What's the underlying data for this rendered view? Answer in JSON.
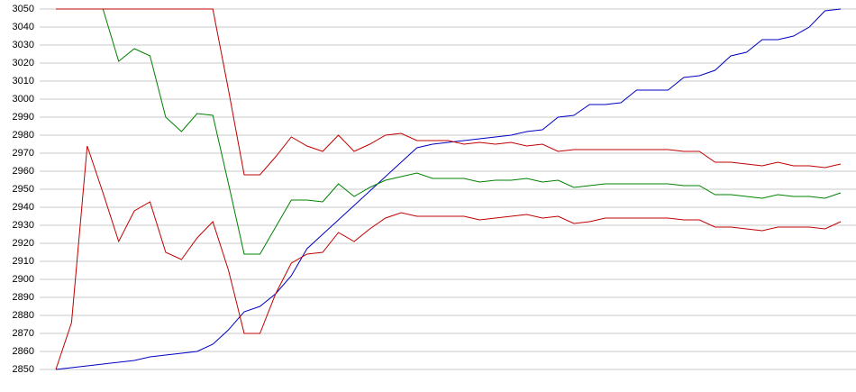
{
  "chart_data": {
    "type": "line",
    "categories": [
      null,
      null,
      null,
      null,
      null,
      null,
      null,
      null,
      null,
      null,
      null,
      null,
      null,
      null,
      null,
      null,
      null,
      null,
      null,
      null,
      null,
      null,
      null,
      null,
      null,
      null,
      null,
      null,
      null,
      null,
      null,
      null,
      null,
      null,
      null,
      null,
      null,
      null,
      null,
      null,
      null,
      null,
      null,
      null,
      null,
      null,
      null,
      null,
      null,
      null,
      null
    ],
    "series": [
      {
        "color": "#0000c0",
        "values": [
          2850,
          2851,
          2852,
          2853,
          2854,
          2855,
          2857,
          2858,
          2859,
          2860,
          2864,
          2872,
          2882,
          2885,
          2892,
          2902,
          2917,
          2925,
          2933,
          2941,
          2949,
          2957,
          2965,
          2973,
          2975,
          2976,
          2977,
          2978,
          2979,
          2980,
          2982,
          2983,
          2990,
          2991,
          2997,
          2997,
          2998,
          3005,
          3005,
          3005,
          3012,
          3013,
          3016,
          3024,
          3026,
          3033,
          3033,
          3035,
          3040,
          3049,
          3050
        ]
      },
      {
        "color": "#c00000",
        "values": [
          2850,
          2876,
          2974,
          2948,
          2921,
          2938,
          2943,
          2915,
          2911,
          2923,
          2932,
          2905,
          2870,
          2870,
          2892,
          2909,
          2914,
          2915,
          2926,
          2921,
          2928,
          2934,
          2937,
          2935,
          2935,
          2935,
          2935,
          2933,
          2934,
          2935,
          2936,
          2934,
          2935,
          2931,
          2932,
          2934,
          2934,
          2934,
          2934,
          2934,
          2933,
          2933,
          2929,
          2929,
          2928,
          2927,
          2929,
          2929,
          2929,
          2928,
          2932
        ]
      },
      {
        "color": "#008000",
        "values": [
          3050,
          3050,
          3050,
          3050,
          3021,
          3028,
          3024,
          2990,
          2982,
          2992,
          2991,
          2953,
          2914,
          2914,
          2929,
          2944,
          2944,
          2943,
          2953,
          2946,
          2951,
          2955,
          2957,
          2959,
          2956,
          2956,
          2956,
          2954,
          2955,
          2955,
          2956,
          2954,
          2955,
          2951,
          2952,
          2953,
          2953,
          2953,
          2953,
          2953,
          2952,
          2952,
          2947,
          2947,
          2946,
          2945,
          2947,
          2946,
          2946,
          2945,
          2948
        ]
      },
      {
        "color": "#c00000",
        "values": [
          3050,
          3050,
          3050,
          3050,
          3050,
          3050,
          3050,
          3050,
          3050,
          3050,
          3050,
          3005,
          2958,
          2958,
          2968,
          2979,
          2974,
          2971,
          2980,
          2971,
          2975,
          2980,
          2981,
          2977,
          2977,
          2977,
          2975,
          2976,
          2975,
          2976,
          2974,
          2975,
          2971,
          2972,
          2972,
          2972,
          2972,
          2972,
          2972,
          2972,
          2971,
          2971,
          2965,
          2965,
          2964,
          2963,
          2965,
          2963,
          2963,
          2962,
          2964
        ]
      }
    ],
    "ylim": [
      2850,
      3050
    ],
    "yticks": [
      2850,
      2860,
      2870,
      2880,
      2890,
      2900,
      2910,
      2920,
      2930,
      2940,
      2950,
      2960,
      2970,
      2980,
      2990,
      3000,
      3010,
      3020,
      3030,
      3040,
      3050
    ],
    "grid": true
  }
}
